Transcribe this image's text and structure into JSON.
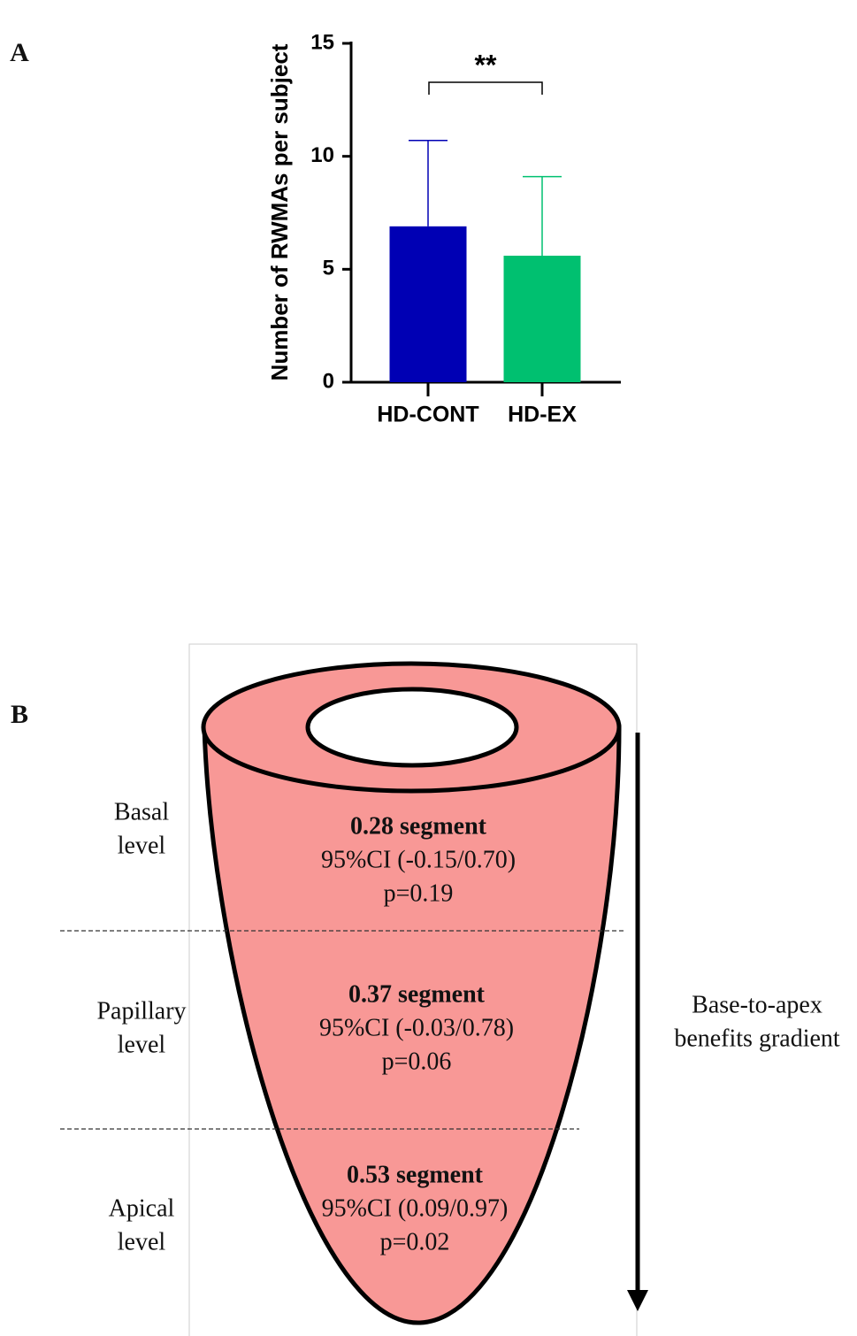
{
  "chart_data": {
    "type": "bar",
    "panel_label": "A",
    "ylabel": "Number of RWMAs per subject",
    "categories": [
      "HD-CONT",
      "HD-EX"
    ],
    "values": [
      6.9,
      5.6
    ],
    "errors": [
      3.8,
      3.5
    ],
    "colors": [
      "#0000b4",
      "#00c070"
    ],
    "ylim": [
      0,
      15
    ],
    "yticks": [
      0,
      5,
      10,
      15
    ],
    "grid": false,
    "significance": "**"
  },
  "panel_b": {
    "label": "B",
    "levels": [
      {
        "name": [
          "Basal",
          "level"
        ],
        "estimate": "0.28 segment",
        "ci": "95%CI (-0.15/0.70)",
        "p": "p=0.19"
      },
      {
        "name": [
          "Papillary",
          "level"
        ],
        "estimate": "0.37 segment",
        "ci": "95%CI (-0.03/0.78)",
        "p": "p=0.06"
      },
      {
        "name": [
          "Apical",
          "level"
        ],
        "estimate": "0.53 segment",
        "ci": "95%CI (0.09/0.97)",
        "p": "p=0.02"
      }
    ],
    "gradient": [
      "Base-to-apex",
      "benefits gradient"
    ]
  }
}
